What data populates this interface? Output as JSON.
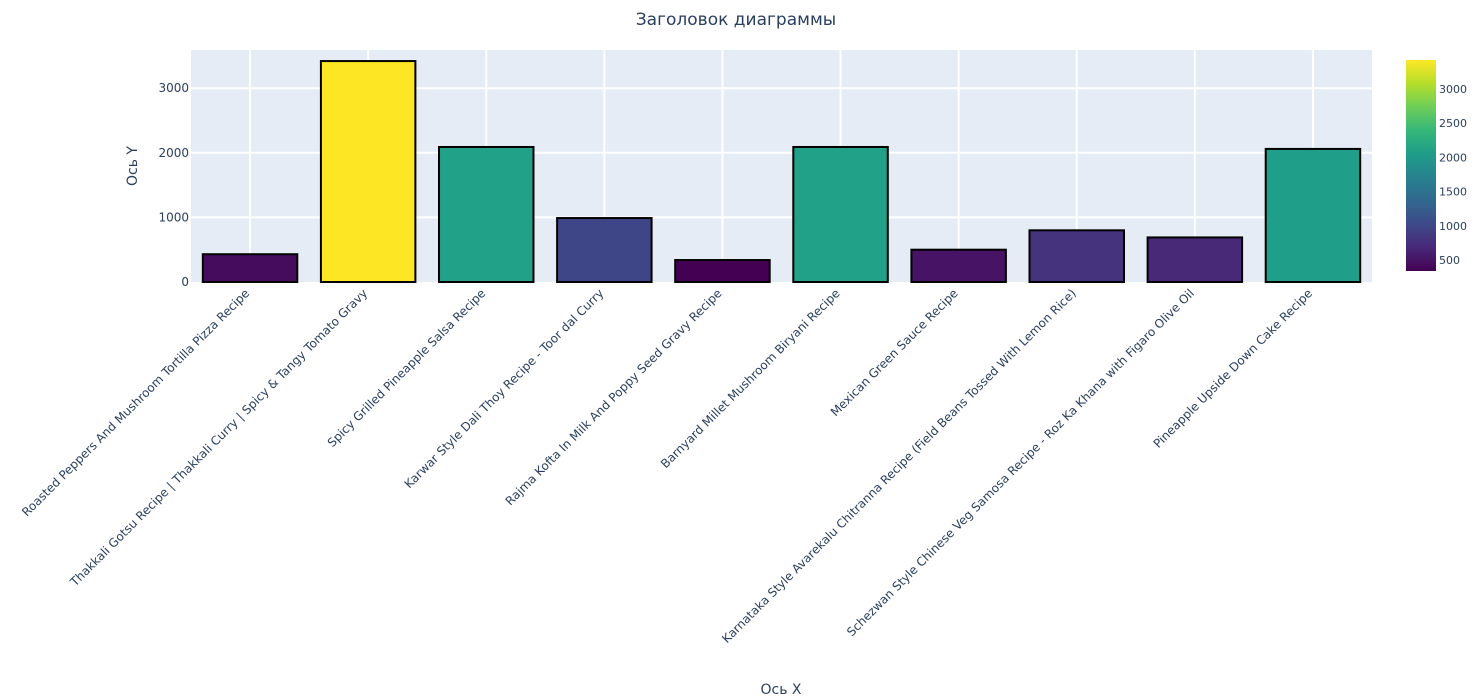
{
  "chart_data": {
    "type": "bar",
    "title": "Заголовок диаграммы",
    "xlabel": "Ось X",
    "ylabel": "Ось Y",
    "categories": [
      "Roasted Peppers And Mushroom Tortilla Pizza Recipe",
      "Thakkali Gotsu Recipe | Thakkali Curry | Spicy & Tangy Tomato Gravy",
      "Spicy Grilled Pineapple Salsa Recipe",
      "Karwar Style Dali Thoy Recipe - Toor dal Curry",
      "Rajma Kofta In Milk And Poppy Seed Gravy Recipe",
      "Barnyard Millet Mushroom Biryani Recipe",
      "Mexican Green Sauce Recipe",
      "Karnataka Style Avarekalu Chitranna Recipe (Field Beans Tossed With Lemon Rice)",
      "Schezwan Style Chinese Veg Samosa Recipe - Roz Ka Khana with Figaro Olive Oil",
      "Pineapple Upside Down Cake Recipe"
    ],
    "values": [
      430,
      3420,
      2090,
      990,
      340,
      2090,
      500,
      800,
      690,
      2060
    ],
    "ylim": [
      0,
      3600
    ],
    "yticks": [
      0,
      1000,
      2000,
      3000
    ],
    "grid": true,
    "colorscale": "viridis",
    "colorbar": {
      "ticks": [
        500,
        1000,
        1500,
        2000,
        2500,
        3000
      ],
      "range": [
        340,
        3420
      ]
    },
    "colors": {
      "plot_bg": "#e5ecf6",
      "grid": "#ffffff",
      "text": "#2a3f5f",
      "bar_outline": "#000000"
    }
  }
}
